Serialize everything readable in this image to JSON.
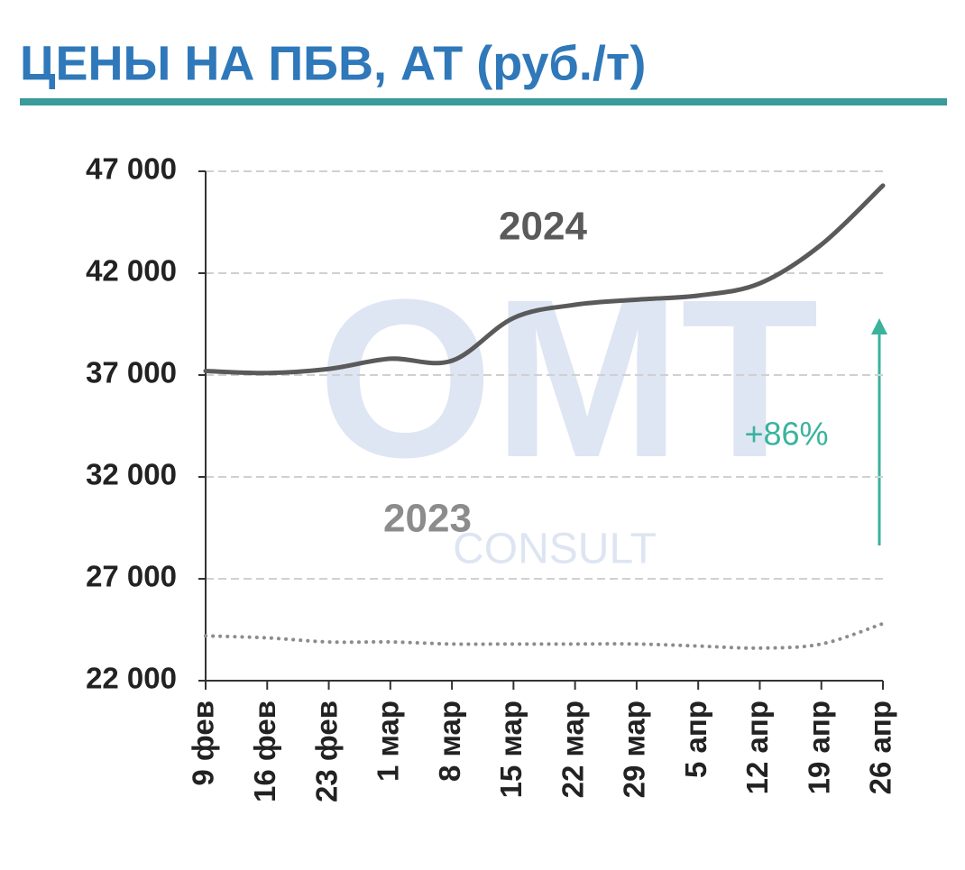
{
  "chart_data": {
    "type": "line",
    "title": "ЦЕНЫ НА ПБВ, АТ (руб./т)",
    "categories": [
      "9 фев",
      "16 фев",
      "23 фев",
      "1 мар",
      "8 мар",
      "15 мар",
      "22 мар",
      "29 мар",
      "5 апр",
      "12 апр",
      "19 апр",
      "26 апр"
    ],
    "series": [
      {
        "name": "2024",
        "color": "#5a5a5a",
        "line_style": "solid",
        "values": [
          37200,
          37100,
          37300,
          37800,
          37700,
          39800,
          40450,
          40700,
          40900,
          41500,
          43400,
          46300
        ]
      },
      {
        "name": "2023",
        "color": "#8c8c8c",
        "line_style": "dotted",
        "values": [
          24200,
          24100,
          23900,
          23900,
          23800,
          23800,
          23800,
          23800,
          23700,
          23600,
          23800,
          24800
        ]
      }
    ],
    "ylim": [
      22000,
      47000
    ],
    "yticks": [
      {
        "value": 22000,
        "label": "22 000"
      },
      {
        "value": 27000,
        "label": "27 000"
      },
      {
        "value": 32000,
        "label": "32 000"
      },
      {
        "value": 37000,
        "label": "37 000"
      },
      {
        "value": 42000,
        "label": "42 000"
      },
      {
        "value": 47000,
        "label": "47 000"
      }
    ],
    "grid": true,
    "annotation": "+86%",
    "watermark": [
      "OMT",
      "CONSULT"
    ]
  }
}
